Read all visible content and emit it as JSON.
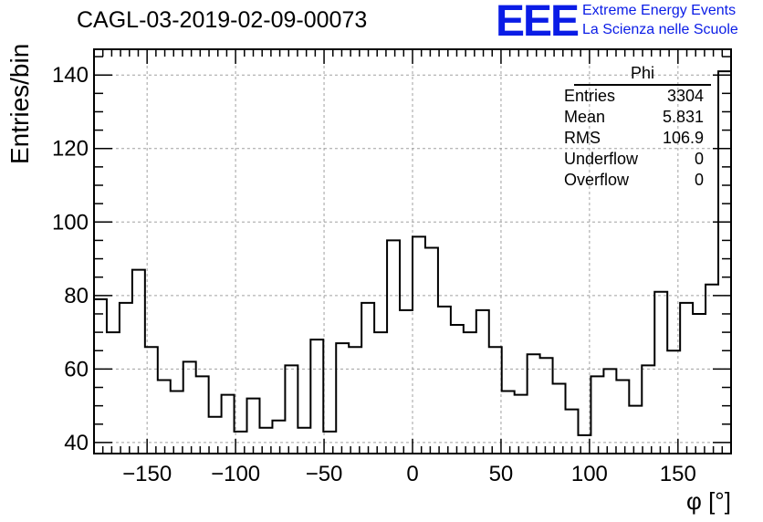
{
  "header": {
    "title": "CAGL-03-2019-02-09-00073",
    "logo_text": "EEE",
    "logo_line1": "Extreme Energy Events",
    "logo_line2": "La Scienza nelle Scuole"
  },
  "stats": {
    "title": "Phi",
    "rows": [
      {
        "label": "Entries",
        "value": "3304"
      },
      {
        "label": "Mean",
        "value": "5.831"
      },
      {
        "label": "RMS",
        "value": "106.9"
      },
      {
        "label": "Underflow",
        "value": "0"
      },
      {
        "label": "Overflow",
        "value": "0"
      }
    ]
  },
  "colors": {
    "accent": "#0a1ce6",
    "line": "#000000",
    "grid": "#a0a0a0"
  },
  "chart_data": {
    "type": "bar",
    "title": "CAGL-03-2019-02-09-00073",
    "xlabel": "φ [°]",
    "ylabel": "Entries/bin",
    "xlim": [
      -180,
      180
    ],
    "ylim": [
      37,
      147
    ],
    "bin_width": 7.2,
    "x_ticks": [
      -150,
      -100,
      -50,
      0,
      50,
      100,
      150
    ],
    "y_ticks": [
      40,
      60,
      80,
      100,
      120,
      140
    ],
    "grid": true,
    "values": [
      79,
      70,
      78,
      87,
      66,
      57,
      54,
      62,
      58,
      47,
      53,
      43,
      52,
      44,
      46,
      61,
      44,
      68,
      43,
      67,
      66,
      78,
      70,
      95,
      76,
      96,
      93,
      77,
      72,
      70,
      76,
      66,
      54,
      53,
      64,
      63,
      56,
      49,
      42,
      58,
      60,
      57,
      50,
      61,
      81,
      65,
      78,
      75,
      83,
      141
    ]
  }
}
